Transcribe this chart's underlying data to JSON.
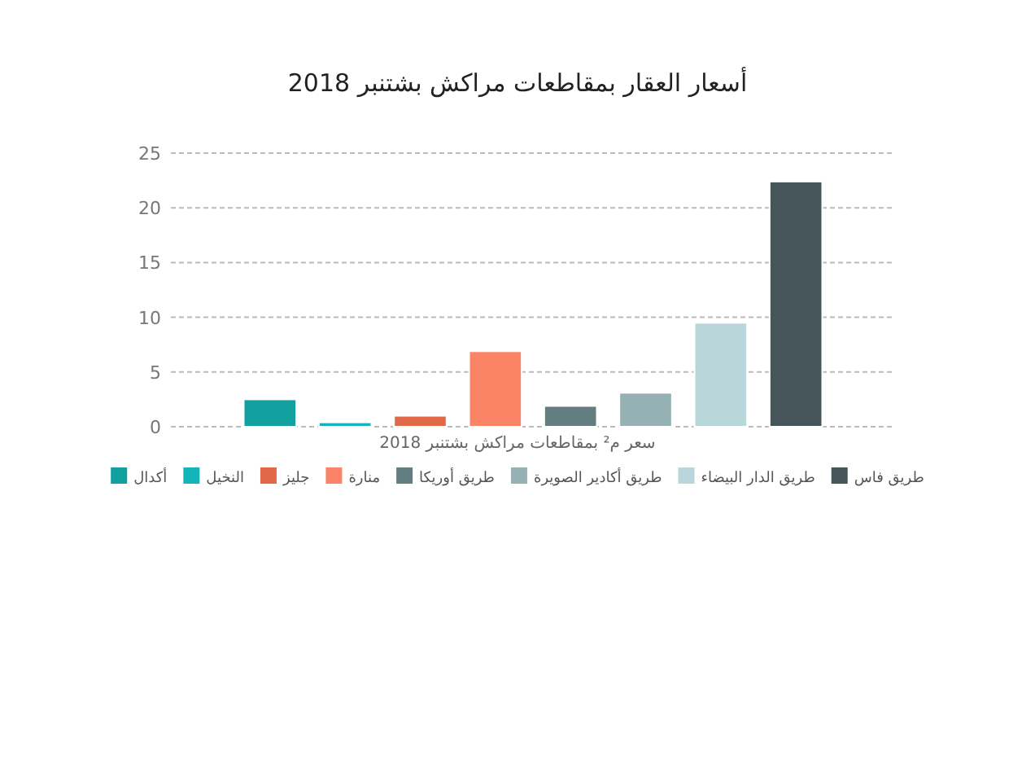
{
  "chart_data": {
    "type": "bar",
    "title": "أسعار العقار بمقاطعات مراكش بشتنبر 2018",
    "xlabel": "سعر م² بمقاطعات مراكش بشتنبر 2018",
    "categories": [
      null
    ],
    "series": [
      {
        "name": "أكدال",
        "color": "#129fa0",
        "values": [
          2.5
        ]
      },
      {
        "name": "النخيل",
        "color": "#14b4bb",
        "values": [
          0.4
        ]
      },
      {
        "name": "جليز",
        "color": "#e2684a",
        "values": [
          1.0
        ]
      },
      {
        "name": "منارة",
        "color": "#fb8466",
        "values": [
          6.9
        ]
      },
      {
        "name": "طريق أوريكا",
        "color": "#637e81",
        "values": [
          1.9
        ]
      },
      {
        "name": "طريق أكادير الصويرة",
        "color": "#95b1b4",
        "values": [
          3.1
        ]
      },
      {
        "name": "طريق الدار البيضاء",
        "color": "#b9d7db",
        "values": [
          9.5
        ]
      },
      {
        "name": "طريق فاس",
        "color": "#465559",
        "values": [
          22.4
        ]
      }
    ],
    "ylim": [
      0,
      25
    ],
    "yticks": [
      0,
      5,
      10,
      15,
      20,
      25
    ],
    "grid": "y",
    "legend": "bottom"
  }
}
